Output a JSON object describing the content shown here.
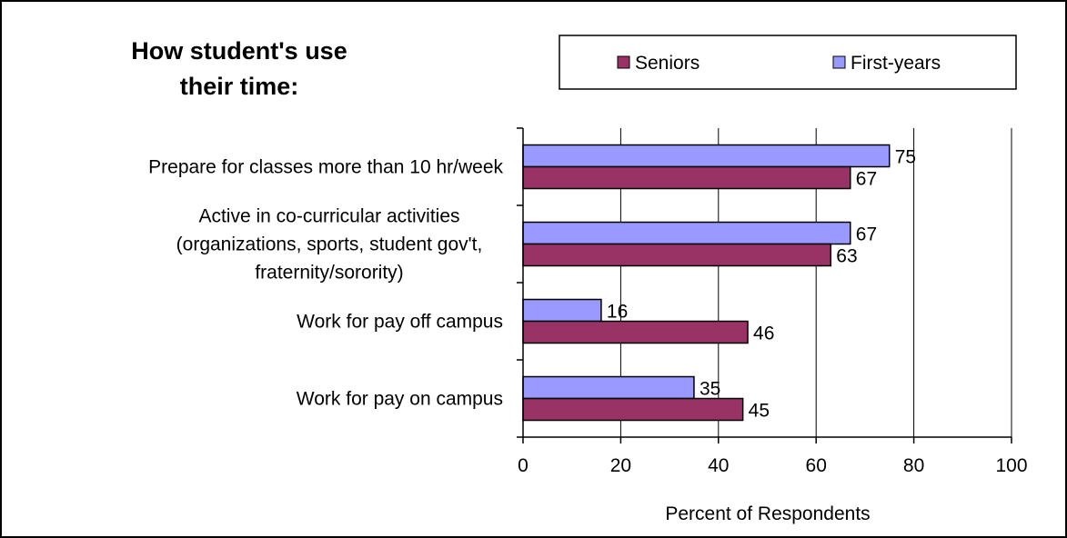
{
  "chart_data": {
    "type": "bar",
    "orientation": "horizontal",
    "title": "How student's use their time:",
    "title_lines": [
      "How student's use",
      "their time:"
    ],
    "xlabel": "Percent of Respondents",
    "ylabel": "",
    "xlim": [
      0,
      100
    ],
    "x_ticks": [
      0,
      20,
      40,
      60,
      80,
      100
    ],
    "grid": "vertical gridlines",
    "legend_position": "top-right",
    "categories": [
      {
        "lines": [
          "Prepare for classes more than 10 hr/week"
        ]
      },
      {
        "lines": [
          "Active in co-curricular activities",
          "(organizations, sports, student gov't,",
          "fraternity/sorority)"
        ]
      },
      {
        "lines": [
          "Work for pay off campus"
        ]
      },
      {
        "lines": [
          "Work for pay on campus"
        ]
      }
    ],
    "series": [
      {
        "name": "First-years",
        "color": "#9999ff",
        "values": [
          75,
          67,
          16,
          35
        ]
      },
      {
        "name": "Seniors",
        "color": "#993366",
        "values": [
          67,
          63,
          46,
          45
        ]
      }
    ],
    "legend_order": [
      "Seniors",
      "First-years"
    ]
  }
}
